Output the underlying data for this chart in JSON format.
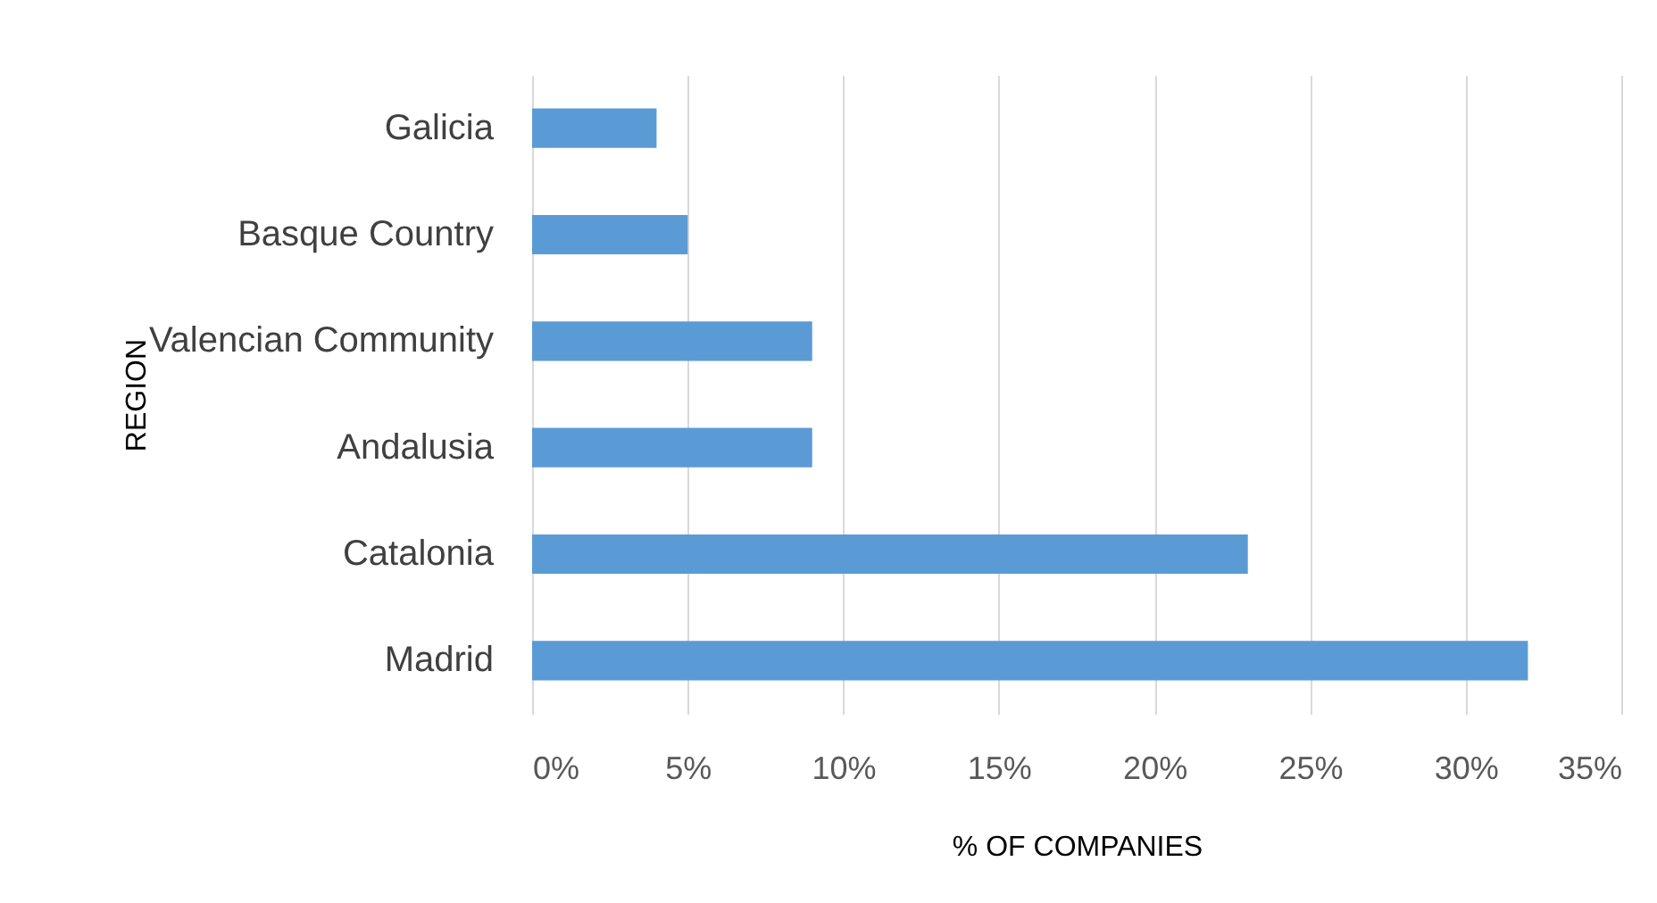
{
  "chart_data": {
    "type": "bar",
    "orientation": "horizontal",
    "xlabel": "% OF COMPANIES",
    "ylabel": "REGION",
    "categories": [
      "Galicia",
      "Basque Country",
      "Valencian Community",
      "Andalusia",
      "Catalonia",
      "Madrid"
    ],
    "values": [
      4,
      5,
      9,
      9,
      23,
      32
    ],
    "color": "#5b9bd5",
    "xlim": [
      0,
      35
    ],
    "xticks": [
      {
        "value": 0,
        "label": "0%"
      },
      {
        "value": 5,
        "label": "5%"
      },
      {
        "value": 10,
        "label": "10%"
      },
      {
        "value": 15,
        "label": "15%"
      },
      {
        "value": 20,
        "label": "20%"
      },
      {
        "value": 25,
        "label": "25%"
      },
      {
        "value": 30,
        "label": "30%"
      },
      {
        "value": 35,
        "label": "35%"
      }
    ],
    "grid": "x"
  }
}
